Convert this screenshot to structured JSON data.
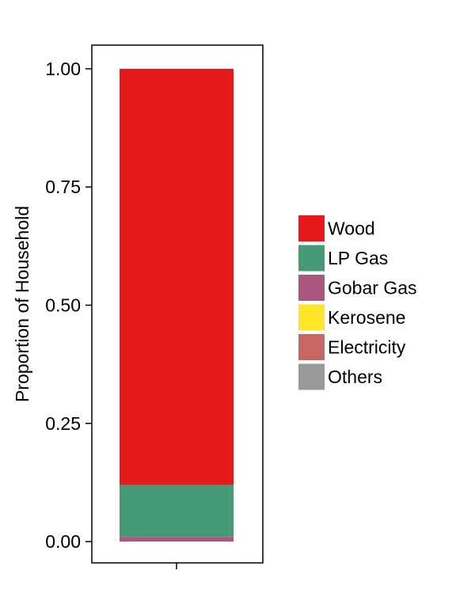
{
  "chart_data": {
    "type": "bar",
    "stacked": true,
    "categories": [
      ""
    ],
    "series": [
      {
        "name": "Wood",
        "values": [
          0.88
        ],
        "color": "#E41A1C"
      },
      {
        "name": "LP Gas",
        "values": [
          0.11
        ],
        "color": "#449B75"
      },
      {
        "name": "Gobar Gas",
        "values": [
          0.01
        ],
        "color": "#AC5782"
      },
      {
        "name": "Kerosene",
        "values": [
          0.0
        ],
        "color": "#FFE528"
      },
      {
        "name": "Electricity",
        "values": [
          0.0
        ],
        "color": "#C66764"
      },
      {
        "name": "Others",
        "values": [
          0.0
        ],
        "color": "#999999"
      }
    ],
    "title": "",
    "xlabel": "",
    "ylabel": "Proportion of Household",
    "ylim": [
      -0.045,
      1.05
    ],
    "yticks": [
      0.0,
      0.25,
      0.5,
      0.75,
      1.0
    ],
    "ytick_labels": [
      "0.00",
      "0.25",
      "0.50",
      "0.75",
      "1.00"
    ],
    "grid": false,
    "legend_position": "right"
  }
}
